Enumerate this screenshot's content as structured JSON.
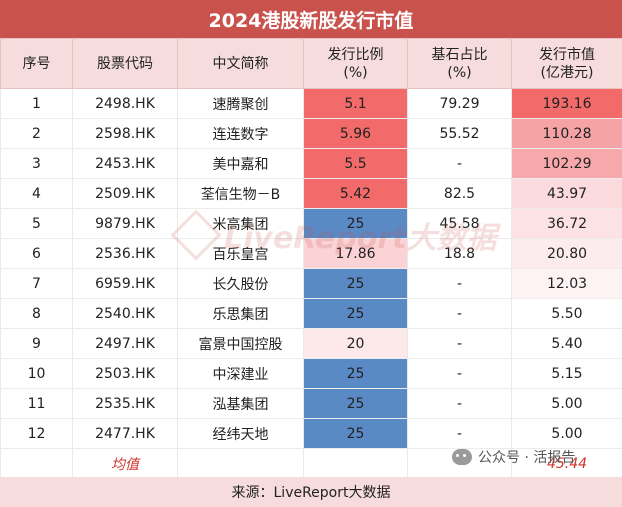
{
  "title": "2024港股新股发行市值",
  "headers": [
    {
      "line1": "序号",
      "line2": ""
    },
    {
      "line1": "股票代码",
      "line2": ""
    },
    {
      "line1": "中文简称",
      "line2": ""
    },
    {
      "line1": "发行比例",
      "line2": "(%)"
    },
    {
      "line1": "基石占比",
      "line2": "(%)"
    },
    {
      "line1": "发行市值",
      "line2": "(亿港元)"
    }
  ],
  "rows": [
    {
      "no": "1",
      "code": "2498.HK",
      "name": "速腾聚创",
      "ratio": "5.1",
      "ratio_bg": "#f36a6a",
      "cornerstone": "79.29",
      "mcap": "193.16",
      "mcap_bg": "#f36a6a"
    },
    {
      "no": "2",
      "code": "2598.HK",
      "name": "连连数字",
      "ratio": "5.96",
      "ratio_bg": "#f36a6a",
      "cornerstone": "55.52",
      "mcap": "110.28",
      "mcap_bg": "#f6a3a6"
    },
    {
      "no": "3",
      "code": "2453.HK",
      "name": "美中嘉和",
      "ratio": "5.5",
      "ratio_bg": "#f36a6a",
      "cornerstone": "-",
      "mcap": "102.29",
      "mcap_bg": "#f6a8ab"
    },
    {
      "no": "4",
      "code": "2509.HK",
      "name": "荃信生物－B",
      "ratio": "5.42",
      "ratio_bg": "#f36a6a",
      "cornerstone": "82.5",
      "mcap": "43.97",
      "mcap_bg": "#fbdbdd"
    },
    {
      "no": "5",
      "code": "9879.HK",
      "name": "米高集团",
      "ratio": "25",
      "ratio_bg": "#5a8ac6",
      "cornerstone": "45.58",
      "mcap": "36.72",
      "mcap_bg": "#fce2e4"
    },
    {
      "no": "6",
      "code": "2536.HK",
      "name": "百乐皇宫",
      "ratio": "17.86",
      "ratio_bg": "#fbd3d6",
      "cornerstone": "18.8",
      "mcap": "20.80",
      "mcap_bg": "#fcecee"
    },
    {
      "no": "7",
      "code": "6959.HK",
      "name": "长久股份",
      "ratio": "25",
      "ratio_bg": "#5a8ac6",
      "cornerstone": "-",
      "mcap": "12.03",
      "mcap_bg": "#fdf3f4"
    },
    {
      "no": "8",
      "code": "2540.HK",
      "name": "乐思集团",
      "ratio": "25",
      "ratio_bg": "#5a8ac6",
      "cornerstone": "-",
      "mcap": "5.50",
      "mcap_bg": "#ffffff"
    },
    {
      "no": "9",
      "code": "2497.HK",
      "name": "富景中国控股",
      "ratio": "20",
      "ratio_bg": "#fde9ea",
      "cornerstone": "-",
      "mcap": "5.40",
      "mcap_bg": "#ffffff"
    },
    {
      "no": "10",
      "code": "2503.HK",
      "name": "中深建业",
      "ratio": "25",
      "ratio_bg": "#5a8ac6",
      "cornerstone": "-",
      "mcap": "5.15",
      "mcap_bg": "#ffffff"
    },
    {
      "no": "11",
      "code": "2535.HK",
      "name": "泓基集团",
      "ratio": "25",
      "ratio_bg": "#5a8ac6",
      "cornerstone": "-",
      "mcap": "5.00",
      "mcap_bg": "#ffffff"
    },
    {
      "no": "12",
      "code": "2477.HK",
      "name": "经纬天地",
      "ratio": "25",
      "ratio_bg": "#5a8ac6",
      "cornerstone": "-",
      "mcap": "5.00",
      "mcap_bg": "#ffffff"
    }
  ],
  "average": {
    "label": "均值",
    "mcap": "45.44"
  },
  "source": "来源：LiveReport大数据",
  "watermark": "LiveReport大数据",
  "wechat_label": "公众号 · 活报告",
  "colors": {
    "title_bg": "#c9524d",
    "header_bg": "#f6dcdc",
    "avg_text": "#d0342c"
  }
}
